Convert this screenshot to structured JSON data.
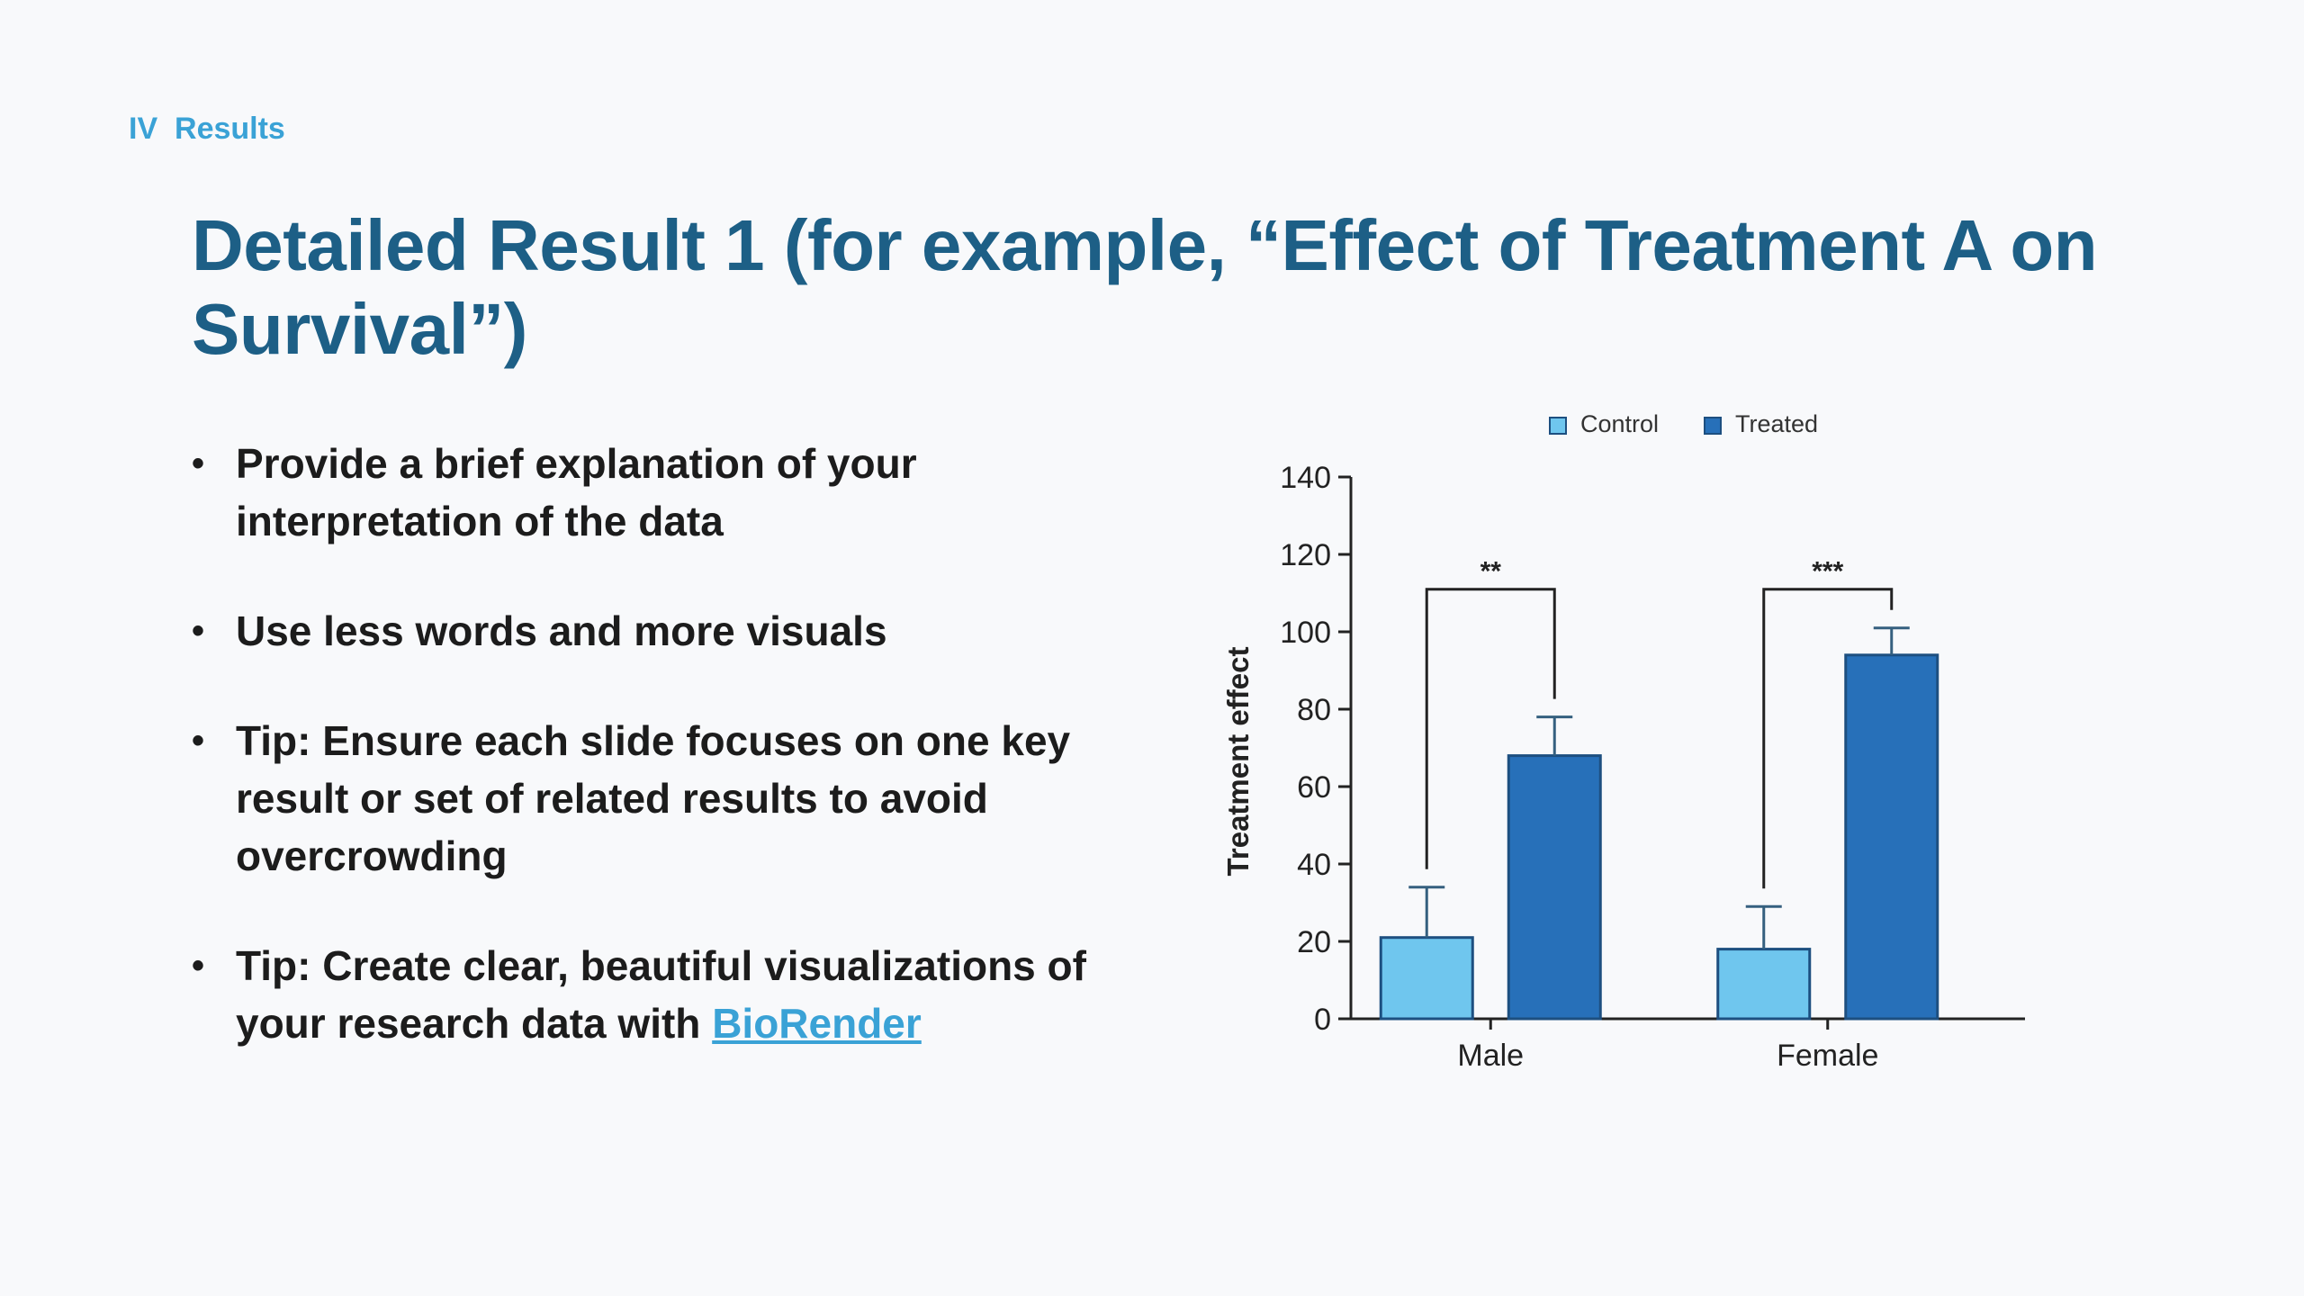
{
  "section": {
    "label": "IV  Results"
  },
  "slide": {
    "title": "Detailed Result 1 (for example, “Effect of Treatment A on Survival”)"
  },
  "bullets": [
    {
      "text": "Provide a brief explanation of your interpretation of the data"
    },
    {
      "text": "Use less words and more visuals"
    },
    {
      "text": "Tip: Ensure each slide focuses on one key result or set of related results to avoid overcrowding"
    },
    {
      "text": "Tip: Create clear, beautiful visualizations of your research data with ",
      "link_text": "BioRender"
    }
  ],
  "bullet_symbol": "•",
  "colors": {
    "title": "#1d5f86",
    "accent": "#3aa2d6",
    "control": "#6fc6ee",
    "treated": "#2770b9"
  },
  "chart_data": {
    "type": "bar",
    "categories": [
      "Male",
      "Female"
    ],
    "series": [
      {
        "name": "Control",
        "values": [
          21,
          18
        ],
        "errors": [
          13,
          11
        ],
        "color": "#6fc6ee"
      },
      {
        "name": "Treated",
        "values": [
          68,
          94
        ],
        "errors": [
          10,
          7
        ],
        "color": "#2770b9"
      }
    ],
    "ylabel": "Treatment effect",
    "xlabel": "",
    "ylim": [
      0,
      140
    ],
    "yticks": [
      0,
      20,
      40,
      60,
      80,
      100,
      120,
      140
    ],
    "legend": "top",
    "grid": false,
    "significance": [
      {
        "category": "Male",
        "label": "**"
      },
      {
        "category": "Female",
        "label": "***"
      }
    ]
  }
}
